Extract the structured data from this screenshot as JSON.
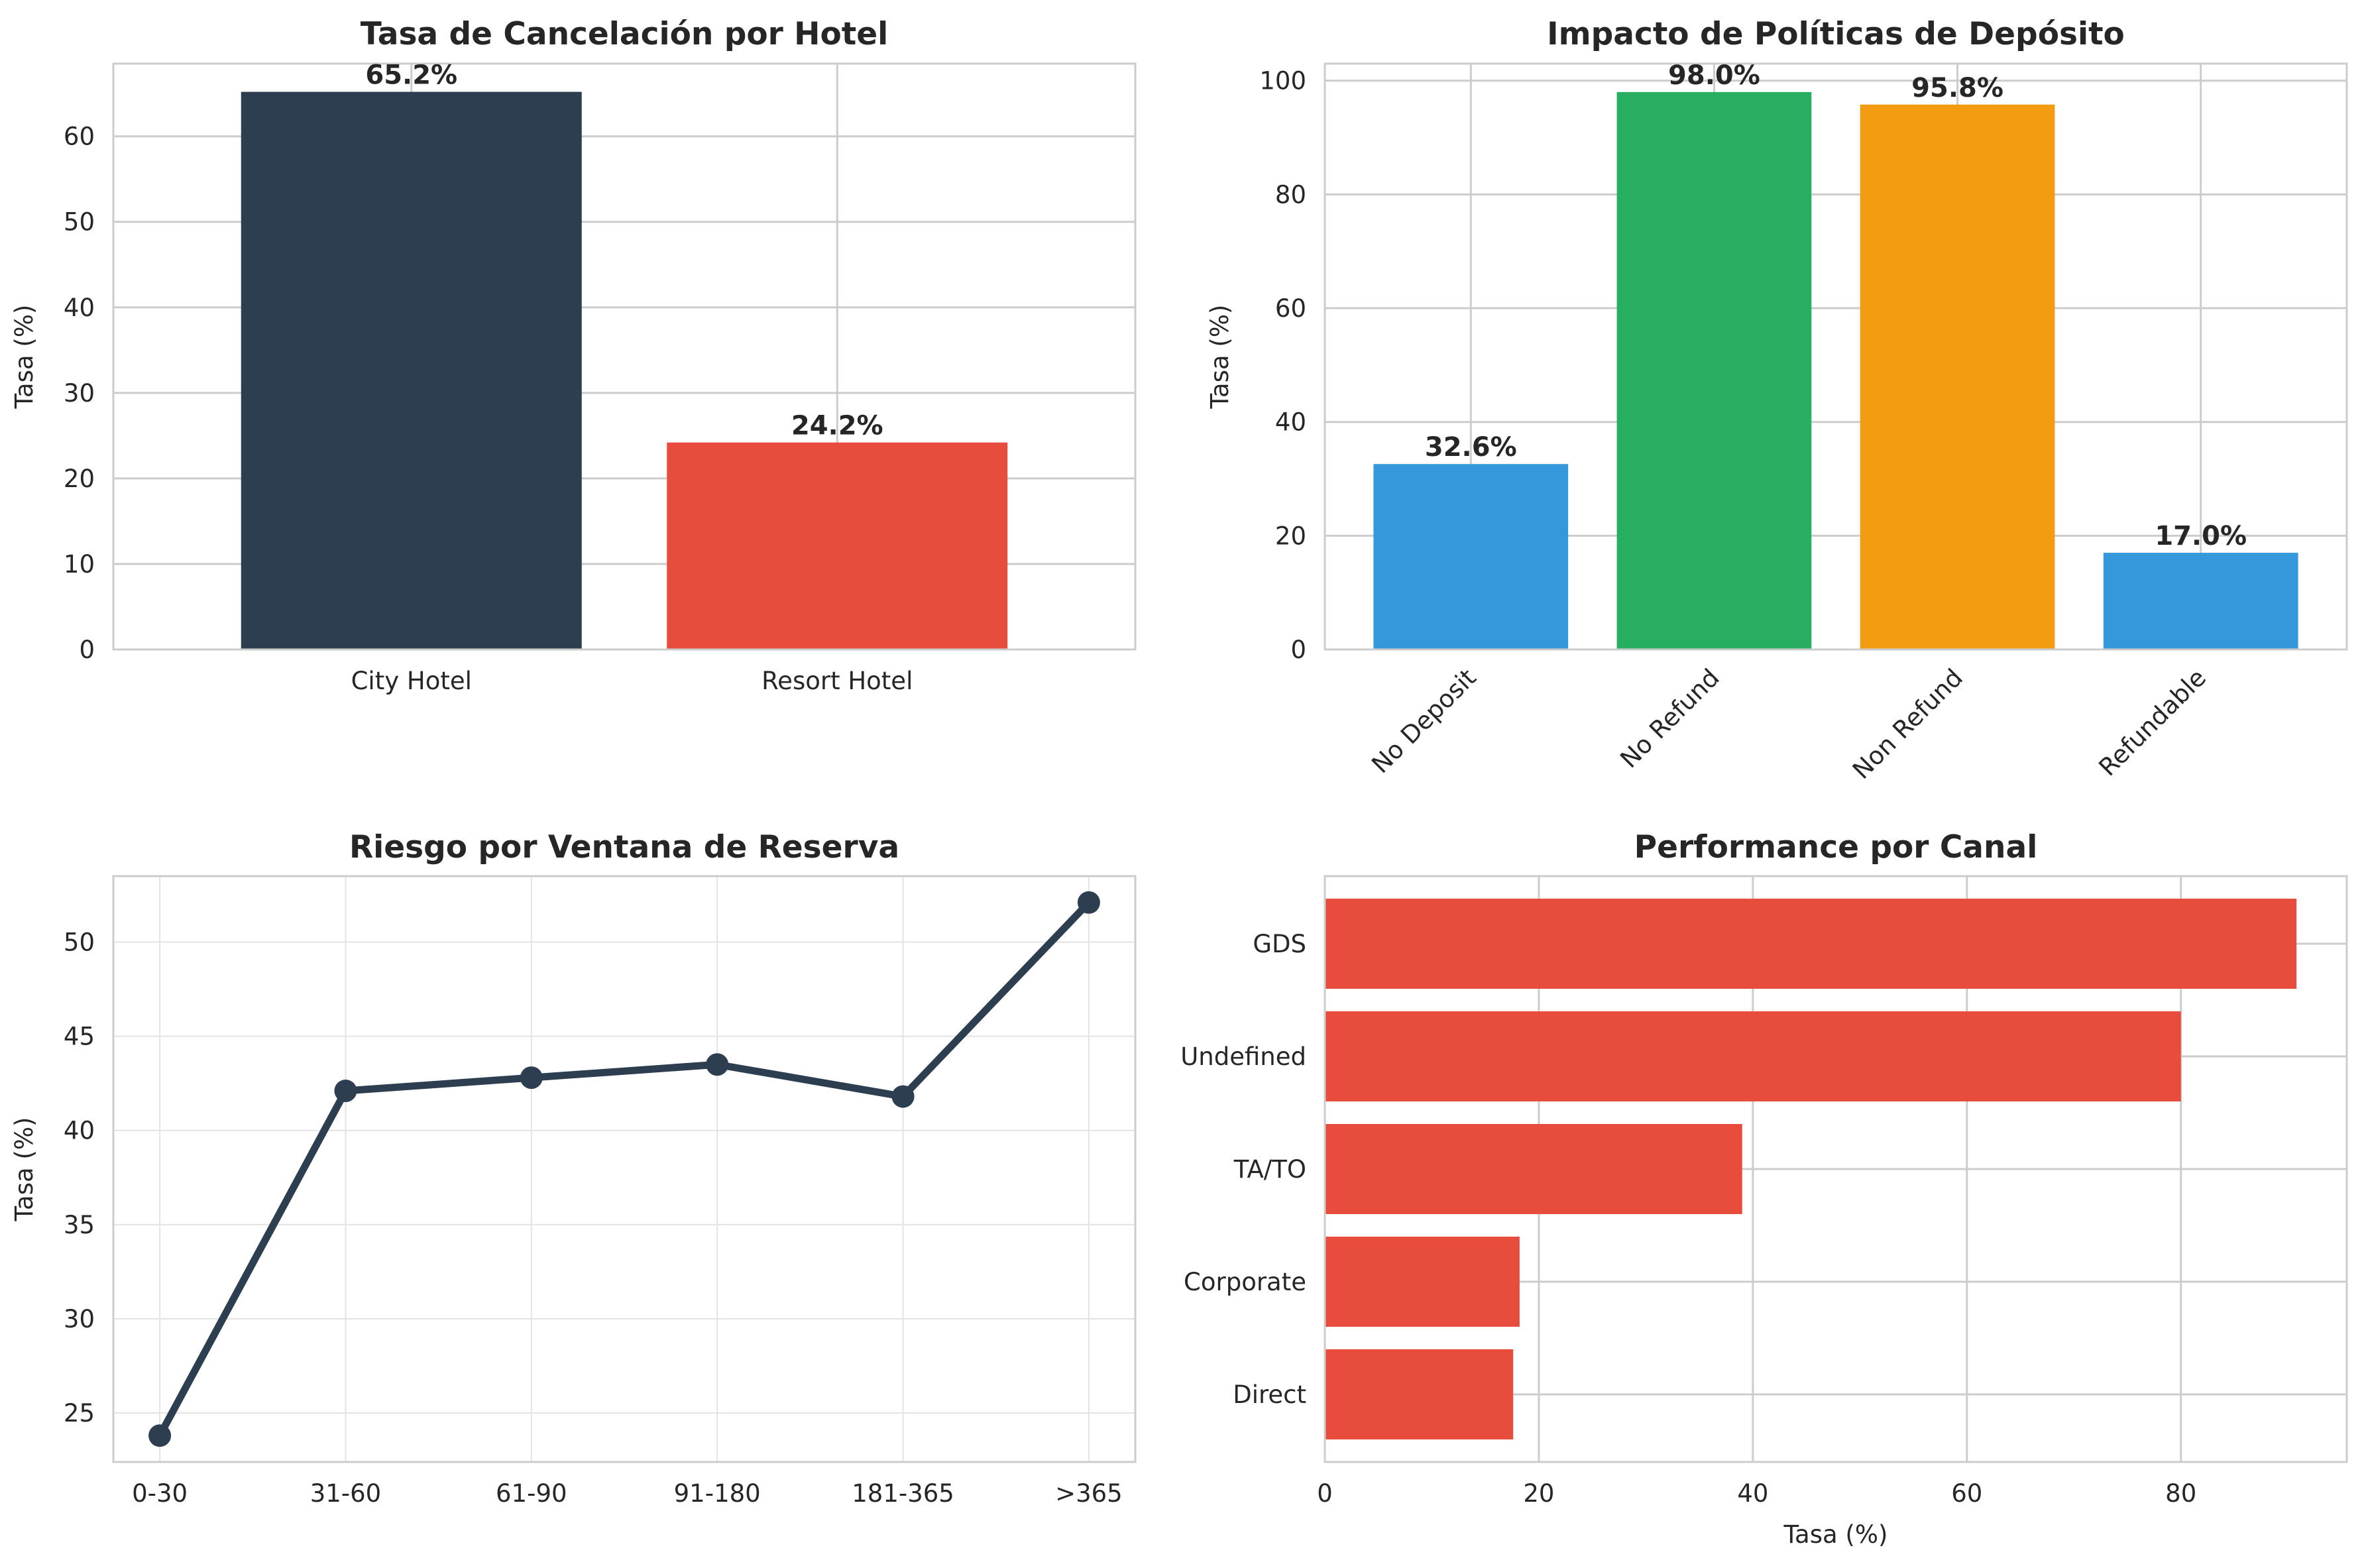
{
  "chart_data": [
    {
      "type": "bar",
      "title": "Tasa de Cancelación por Hotel",
      "ylabel": "Tasa (%)",
      "xlabel": "",
      "categories": [
        "City Hotel",
        "Resort Hotel"
      ],
      "values": [
        65.2,
        24.2
      ],
      "data_labels": [
        "65.2%",
        "24.2%"
      ],
      "colors": [
        "#2c3e50",
        "#e74c3c"
      ],
      "ylim": [
        0,
        68.5
      ],
      "yticks": [
        0,
        10,
        20,
        30,
        40,
        50,
        60
      ],
      "grid": true
    },
    {
      "type": "bar",
      "title": "Impacto de Políticas de Depósito",
      "ylabel": "Tasa (%)",
      "xlabel": "",
      "categories": [
        "No Deposit",
        "No Refund",
        "Non Refund",
        "Refundable"
      ],
      "values": [
        32.6,
        98.0,
        95.8,
        17.0
      ],
      "data_labels": [
        "32.6%",
        "98.0%",
        "95.8%",
        "17.0%"
      ],
      "colors": [
        "#3498db",
        "#27ae60",
        "#f39c12",
        "#3498db"
      ],
      "ylim": [
        0,
        103
      ],
      "yticks": [
        0,
        20,
        40,
        60,
        80,
        100
      ],
      "grid": true
    },
    {
      "type": "line",
      "title": "Riesgo por Ventana de Reserva",
      "ylabel": "Tasa (%)",
      "xlabel": "",
      "categories": [
        "0-30",
        "31-60",
        "61-90",
        "91-180",
        "181-365",
        ">365"
      ],
      "values": [
        23.8,
        42.1,
        42.8,
        43.5,
        41.8,
        52.1
      ],
      "color": "#2c3e50",
      "ylim": [
        22.4,
        53.5
      ],
      "yticks": [
        25,
        30,
        35,
        40,
        45,
        50
      ],
      "grid": true
    },
    {
      "type": "bar",
      "orientation": "horizontal",
      "title": "Performance por Canal",
      "xlabel": "Tasa (%)",
      "ylabel": "",
      "categories": [
        "GDS",
        "Undefined",
        "TA/TO",
        "Corporate",
        "Direct"
      ],
      "values": [
        90.8,
        80.0,
        39.0,
        18.2,
        17.6
      ],
      "color": "#e74c3c",
      "xlim": [
        0,
        95.5
      ],
      "xticks": [
        0,
        20,
        40,
        60,
        80
      ],
      "grid": true
    }
  ]
}
